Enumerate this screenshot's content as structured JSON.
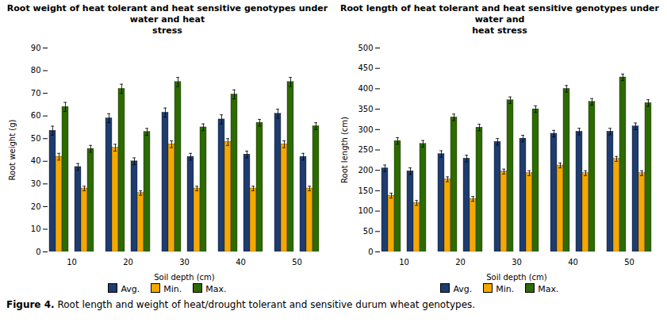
{
  "chart_data": [
    {
      "type": "bar",
      "title": "Root weight of heat tolerant and heat sensitive genotypes under water and heat\nstress",
      "xlabel": "Soil depth (cm)",
      "ylabel": "Root weight (g)",
      "categories": [
        10,
        20,
        30,
        40,
        50
      ],
      "ylim": [
        0,
        90
      ],
      "yticks": [
        0,
        10,
        20,
        30,
        40,
        50,
        60,
        70,
        80,
        90
      ],
      "grid": false,
      "legend": "bottom",
      "series": [
        {
          "name": "Avg.",
          "color": "#1f3c6e",
          "values": [
            53.5,
            59.0,
            61.5,
            58.5,
            61.0
          ],
          "errors": [
            2.0,
            2.0,
            2.0,
            2.0,
            2.0
          ]
        },
        {
          "name": "Min.",
          "color": "#f5a800",
          "values": [
            42.0,
            46.0,
            47.5,
            48.5,
            47.5
          ],
          "errors": [
            1.5,
            1.5,
            1.5,
            1.5,
            1.5
          ]
        },
        {
          "name": "Max.",
          "color": "#2d6a00",
          "values": [
            64.0,
            72.0,
            75.0,
            69.5,
            75.0
          ],
          "errors": [
            2.0,
            2.0,
            2.0,
            2.0,
            2.0
          ]
        },
        {
          "name": "Avg.",
          "color": "#1f3c6e",
          "values": [
            37.5,
            40.0,
            42.0,
            43.0,
            42.0
          ],
          "errors": [
            1.5,
            1.5,
            1.5,
            1.5,
            1.5
          ]
        },
        {
          "name": "Min.",
          "color": "#f5a800",
          "values": [
            28.0,
            26.0,
            28.0,
            28.0,
            28.0
          ],
          "errors": [
            1.0,
            1.0,
            1.0,
            1.0,
            1.0
          ]
        },
        {
          "name": "Max.",
          "color": "#2d6a00",
          "values": [
            45.5,
            53.0,
            55.0,
            57.0,
            55.5
          ],
          "errors": [
            1.5,
            1.5,
            1.5,
            1.5,
            1.5
          ]
        }
      ]
    },
    {
      "type": "bar",
      "title": "Root length of heat tolerant and heat sensitive genotypes under water and\nheat stress",
      "xlabel": "Soil depth (cm)",
      "ylabel": "Root length (cm)",
      "categories": [
        10,
        20,
        30,
        40,
        50
      ],
      "ylim": [
        0,
        500
      ],
      "yticks": [
        0,
        50,
        100,
        150,
        200,
        250,
        300,
        350,
        400,
        450,
        500
      ],
      "grid": false,
      "legend": "bottom",
      "series": [
        {
          "name": "Avg.",
          "color": "#1f3c6e",
          "values": [
            205,
            240,
            270,
            290,
            295
          ],
          "errors": [
            8,
            8,
            8,
            8,
            8
          ]
        },
        {
          "name": "Min.",
          "color": "#f5a800",
          "values": [
            138,
            178,
            197,
            212,
            228
          ],
          "errors": [
            6,
            6,
            6,
            6,
            6
          ]
        },
        {
          "name": "Max.",
          "color": "#2d6a00",
          "values": [
            272,
            330,
            372,
            400,
            428
          ],
          "errors": [
            8,
            8,
            8,
            8,
            8
          ]
        },
        {
          "name": "Avg.",
          "color": "#1f3c6e",
          "values": [
            198,
            229,
            278,
            295,
            308
          ],
          "errors": [
            8,
            8,
            8,
            8,
            8
          ]
        },
        {
          "name": "Min.",
          "color": "#f5a800",
          "values": [
            120,
            130,
            193,
            193,
            193
          ],
          "errors": [
            6,
            6,
            6,
            6,
            6
          ]
        },
        {
          "name": "Max.",
          "color": "#2d6a00",
          "values": [
            265,
            305,
            350,
            368,
            365
          ],
          "errors": [
            8,
            8,
            8,
            8,
            8
          ]
        }
      ]
    }
  ],
  "caption_bold": "Figure 4.",
  "caption": " Root length and weight of heat/drought tolerant and sensitive durum wheat genotypes."
}
